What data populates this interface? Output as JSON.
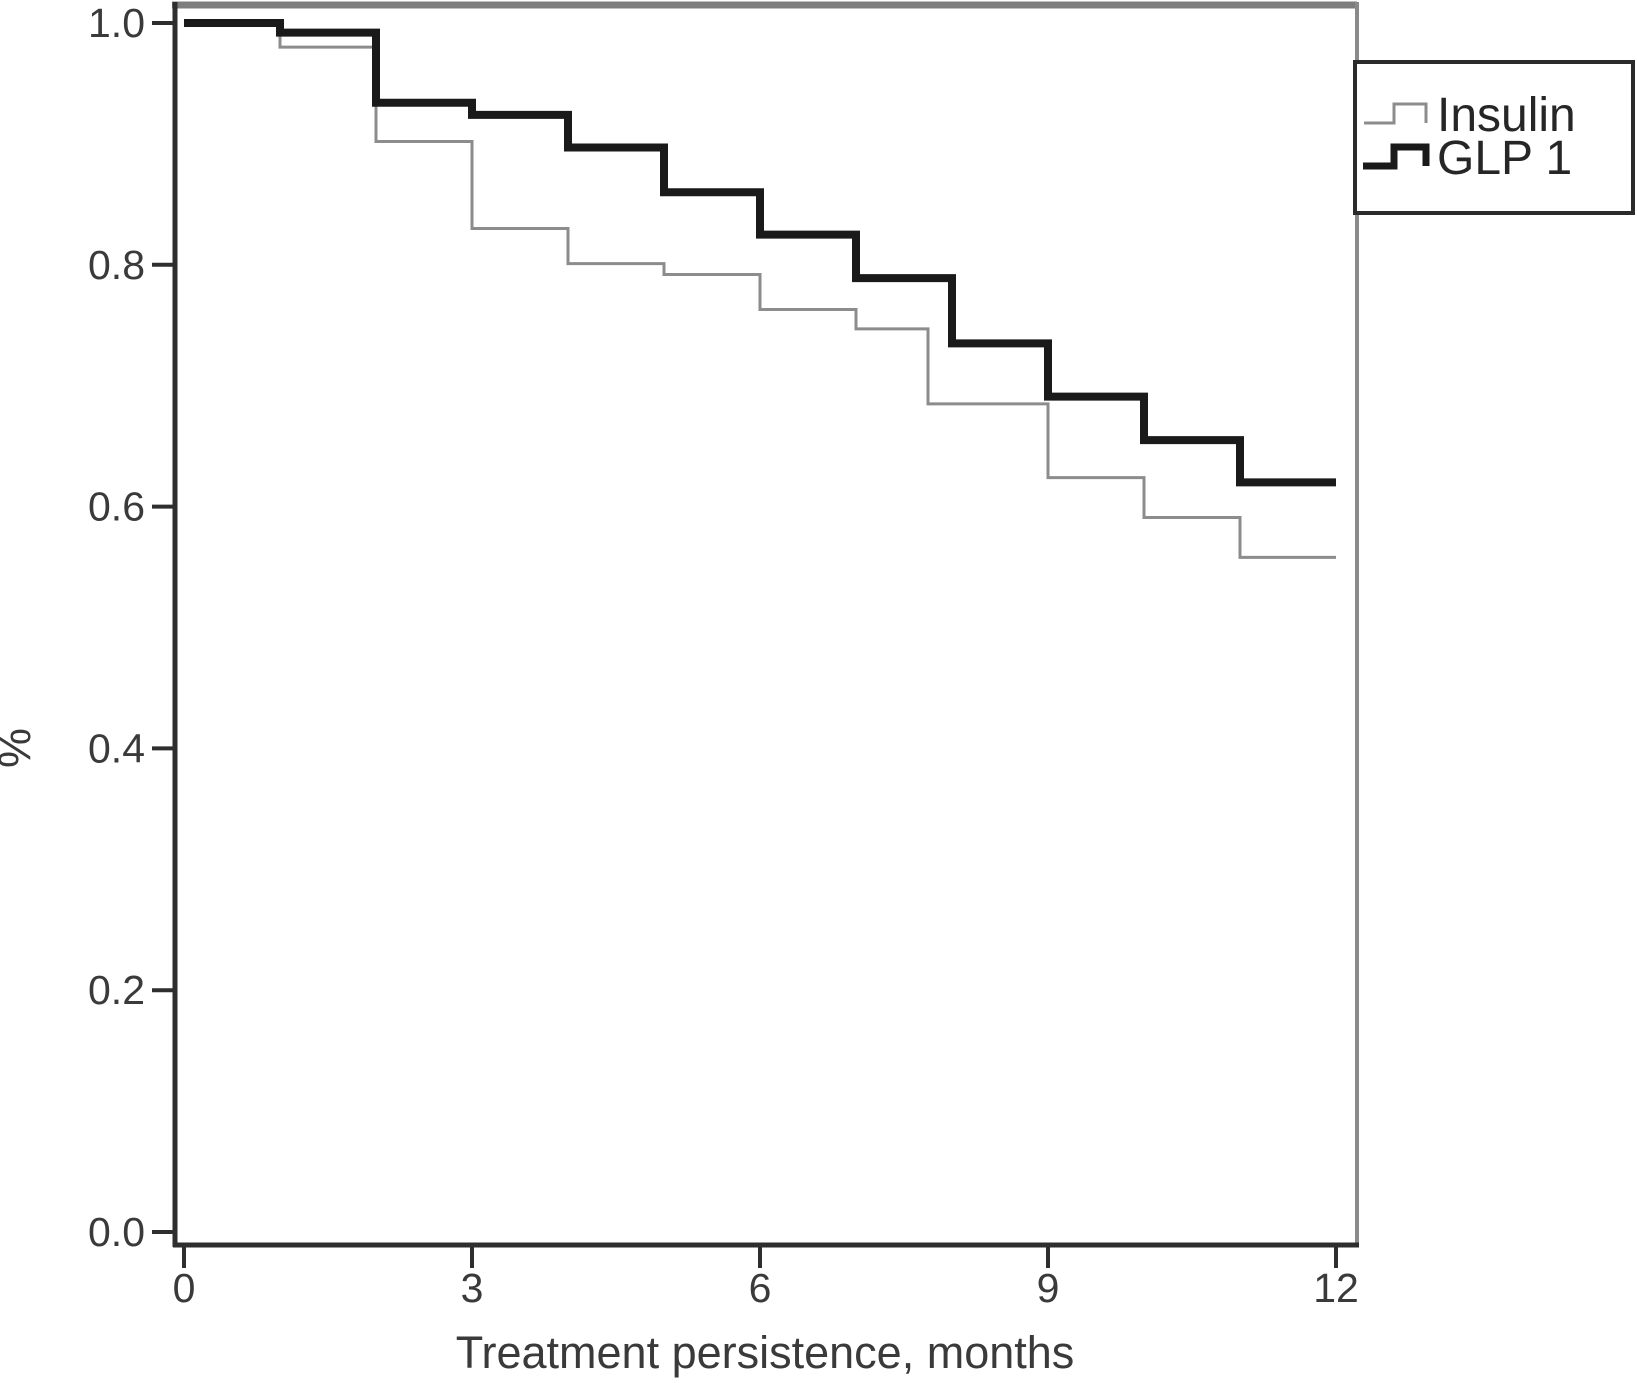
{
  "page": {
    "background_color": "#ffffff"
  },
  "chart_data": {
    "type": "line",
    "variant": "kaplan-meier-step",
    "title": "",
    "xlabel": "Treatment persistence, months",
    "ylabel": "%",
    "xlim": [
      0,
      12
    ],
    "ylim": [
      0.0,
      1.0
    ],
    "x_tick_labels": [
      "0",
      "3",
      "6",
      "9",
      "12"
    ],
    "y_tick_labels": [
      "0.0",
      "0.2",
      "0.4",
      "0.6",
      "0.8",
      "1.0"
    ],
    "grid": false,
    "legend_position": "top-right",
    "series": [
      {
        "name": "Insulin",
        "color": "#8c8c8c",
        "line_width": 3,
        "step_points": [
          [
            0,
            1.0
          ],
          [
            1,
            0.98
          ],
          [
            2,
            0.902
          ],
          [
            3,
            0.83
          ],
          [
            4,
            0.801
          ],
          [
            5,
            0.792
          ],
          [
            6,
            0.763
          ],
          [
            7,
            0.747
          ],
          [
            7.75,
            0.685
          ],
          [
            9,
            0.624
          ],
          [
            10,
            0.591
          ],
          [
            11,
            0.558
          ]
        ],
        "end_x": 12,
        "end_value": 0.558
      },
      {
        "name": "GLP 1",
        "color": "#1a1a1a",
        "line_width": 8,
        "step_points": [
          [
            0,
            1.0
          ],
          [
            1,
            0.992
          ],
          [
            2,
            0.934
          ],
          [
            3,
            0.924
          ],
          [
            4,
            0.897
          ],
          [
            5,
            0.86
          ],
          [
            6,
            0.825
          ],
          [
            7,
            0.789
          ],
          [
            8,
            0.735
          ],
          [
            9,
            0.691
          ],
          [
            10,
            0.655
          ],
          [
            11,
            0.62
          ]
        ],
        "end_x": 12,
        "end_value": 0.62
      }
    ]
  }
}
